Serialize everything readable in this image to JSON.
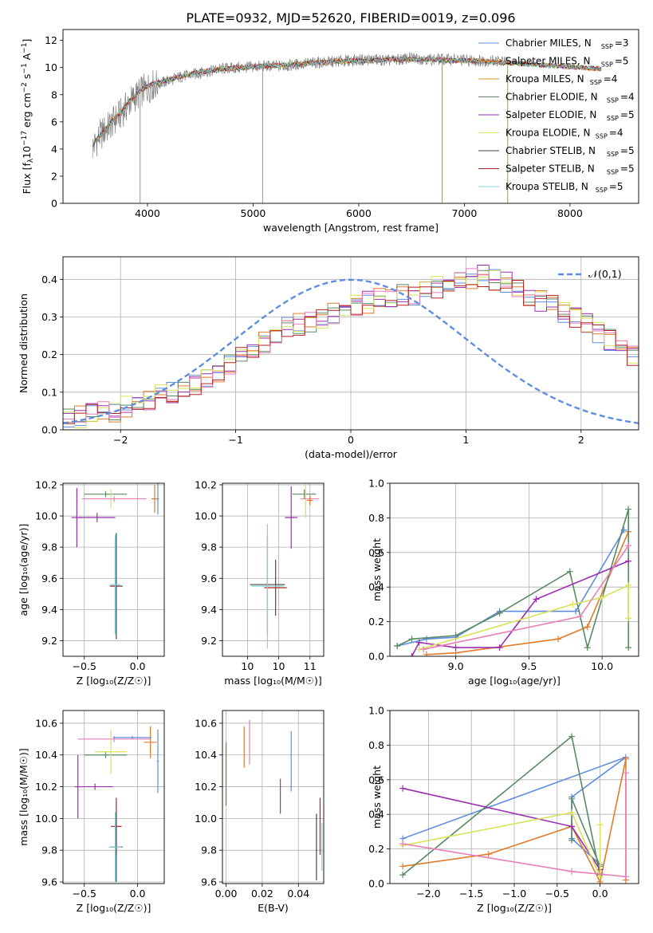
{
  "figure": {
    "title": "PLATE=0932, MJD=52620, FIBERID=0019, z=0.096"
  },
  "series_colors": {
    "Chabrier MILES": "#5f8ee0",
    "Salpeter MILES": "#e07b2c",
    "Kroupa MILES": "#d6941c",
    "Chabrier ELODIE": "#5a8a62",
    "Salpeter ELODIE": "#9b2fae",
    "Kroupa ELODIE": "#d9e35a",
    "Chabrier STELIB": "#444444",
    "Salpeter STELIB": "#b22222",
    "Kroupa STELIB": "#7fd6dc",
    "Kroupa MILES (alt)": "#e87fb8",
    "data": "#808080",
    "normal": "#5f8ee0"
  },
  "chart_data": [
    {
      "id": "spectrum",
      "type": "line",
      "xlabel": "wavelength [Angstrom, rest frame]",
      "ylabel_parts": [
        "Flux [f",
        "λ",
        "10",
        "−17",
        " erg cm",
        "−2",
        " s",
        "−1",
        " A",
        "−1",
        "]"
      ],
      "xlim": [
        3200,
        8650
      ],
      "ylim": [
        0,
        12.8
      ],
      "xticks": [
        4000,
        5000,
        6000,
        7000,
        8000
      ],
      "yticks": [
        0,
        2,
        4,
        6,
        8,
        10,
        12
      ],
      "legend_position": "right",
      "legend": [
        {
          "name": "Chabrier MILES",
          "nssp": "3",
          "color": "#5f8ee0"
        },
        {
          "name": "Salpeter MILES",
          "nssp": "5",
          "color": "#e07b2c"
        },
        {
          "name": "Kroupa MILES",
          "nssp": "4",
          "color": "#d6941c"
        },
        {
          "name": "Chabrier ELODIE",
          "nssp": "4",
          "color": "#5a8a62"
        },
        {
          "name": "Salpeter ELODIE",
          "nssp": "5",
          "color": "#9b2fae"
        },
        {
          "name": "Kroupa ELODIE",
          "nssp": "4",
          "color": "#d9e35a"
        },
        {
          "name": "Chabrier STELIB",
          "nssp": "5",
          "color": "#444444"
        },
        {
          "name": "Salpeter STELIB",
          "nssp": "5",
          "color": "#b22222"
        },
        {
          "name": "Kroupa STELIB",
          "nssp": "5",
          "color": "#7fd6dc"
        }
      ],
      "data_wavelength": [
        3480,
        3550,
        3650,
        3750,
        3850,
        3950,
        4050,
        4150,
        4300,
        4500,
        4700,
        4900,
        5100,
        5300,
        5500,
        5700,
        5900,
        6100,
        6300,
        6500,
        6700,
        6900,
        7100,
        7300,
        7400
      ],
      "data_flux": [
        4.1,
        5.0,
        5.8,
        6.6,
        7.6,
        8.3,
        8.7,
        8.9,
        9.3,
        9.6,
        9.9,
        10.0,
        10.1,
        10.1,
        10.3,
        10.4,
        10.5,
        10.6,
        10.5,
        10.7,
        10.6,
        10.6,
        10.5,
        10.5,
        10.4
      ],
      "model_wavelength": [
        3480,
        3550,
        3650,
        3750,
        3850,
        3950,
        4050,
        4150,
        4300,
        4500,
        4700,
        4900,
        5100,
        5300,
        5500,
        5700,
        5900,
        6100,
        6300,
        6500,
        6700,
        6900,
        7100,
        7300,
        7500,
        7700,
        7900,
        8100,
        8300
      ],
      "model_flux": [
        4.3,
        5.0,
        5.9,
        6.8,
        7.7,
        8.4,
        8.8,
        9.0,
        9.3,
        9.7,
        9.9,
        10.0,
        10.1,
        10.2,
        10.3,
        10.4,
        10.5,
        10.5,
        10.6,
        10.6,
        10.6,
        10.5,
        10.5,
        10.4,
        10.3,
        10.2,
        10.1,
        10.0,
        9.9
      ]
    },
    {
      "id": "residuals",
      "type": "line",
      "xlabel": "(data-model)/error",
      "ylabel": "Normed distribution",
      "xlim": [
        -2.5,
        2.5
      ],
      "ylim": [
        0,
        0.46
      ],
      "xticks": [
        -2,
        -1,
        0,
        1,
        2
      ],
      "yticks": [
        0.0,
        0.1,
        0.2,
        0.3,
        0.4
      ],
      "grid": true,
      "legend_position": "top-right",
      "legend": [
        {
          "name": "𝒩(0,1)",
          "color": "#5f8ee0",
          "style": "dashed"
        }
      ],
      "bin_edges_start": -2.5,
      "bin_width": 0.1,
      "histogram_envelope": [
        0.03,
        0.035,
        0.04,
        0.045,
        0.05,
        0.06,
        0.07,
        0.08,
        0.09,
        0.1,
        0.11,
        0.12,
        0.14,
        0.15,
        0.17,
        0.19,
        0.21,
        0.23,
        0.25,
        0.27,
        0.28,
        0.29,
        0.3,
        0.31,
        0.32,
        0.33,
        0.34,
        0.35,
        0.35,
        0.36,
        0.36,
        0.37,
        0.38,
        0.38,
        0.39,
        0.4,
        0.41,
        0.4,
        0.39,
        0.37,
        0.36,
        0.34,
        0.33,
        0.31,
        0.3,
        0.28,
        0.26,
        0.24,
        0.22,
        0.2
      ]
    },
    {
      "id": "age-vs-Z",
      "type": "scatter",
      "xlabel": "Z [log₁₀(Z/Z☉)]",
      "ylabel": "age  [log₁₀(age/yr)]",
      "xlim": [
        -0.7,
        0.25
      ],
      "ylim": [
        9.1,
        10.21
      ],
      "xticks": [
        -0.5,
        0.0
      ],
      "yticks": [
        9.2,
        9.4,
        9.6,
        9.8,
        10.0,
        10.2
      ],
      "points": [
        {
          "x": -0.2,
          "y": 9.55,
          "xerr": 0.06,
          "yerr": 0.34,
          "color": "#444444"
        },
        {
          "x": -0.21,
          "y": 9.55,
          "xerr": 0.04,
          "yerr": 0.3,
          "color": "#b22222"
        },
        {
          "x": -0.21,
          "y": 9.56,
          "xerr": 0.05,
          "yerr": 0.32,
          "color": "#7fd6dc"
        },
        {
          "x": -0.38,
          "y": 9.99,
          "xerr": 0.17,
          "yerr": 0.03,
          "color": "#9b2fae"
        },
        {
          "x": -0.57,
          "y": 9.99,
          "xerr": 0.05,
          "yerr": 0.19,
          "color": "#9b2fae"
        },
        {
          "x": -0.3,
          "y": 10.14,
          "xerr": 0.2,
          "yerr": 0.02,
          "color": "#5a8a62"
        },
        {
          "x": -0.25,
          "y": 10.11,
          "xerr": 0.05,
          "yerr": 0.06,
          "color": "#d9e35a"
        },
        {
          "x": -0.22,
          "y": 10.11,
          "xerr": 0.3,
          "yerr": 0.02,
          "color": "#e87fb8"
        },
        {
          "x": 0.16,
          "y": 10.11,
          "xerr": 0.03,
          "yerr": 0.09,
          "color": "#e07b2c"
        },
        {
          "x": 0.19,
          "y": 10.11,
          "xerr": 0.01,
          "yerr": 0.1,
          "color": "#5f8ee0"
        }
      ]
    },
    {
      "id": "age-vs-mass",
      "type": "scatter",
      "xlabel": "mass [log₁₀(M/M☉)]",
      "ylabel": "",
      "xlim": [
        9.1,
        10.72
      ],
      "ylim": [
        9.1,
        10.21
      ],
      "xticks": [
        9.5,
        10.0,
        10.5
      ],
      "yticks": [
        9.2,
        9.4,
        9.6,
        9.8,
        10.0,
        10.2
      ],
      "points": [
        {
          "x": 9.82,
          "y": 9.56,
          "xerr": 0.28,
          "yerr": 0.32,
          "color": "#444444"
        },
        {
          "x": 9.95,
          "y": 9.54,
          "xerr": 0.18,
          "yerr": 0.18,
          "color": "#b22222"
        },
        {
          "x": 9.82,
          "y": 9.55,
          "xerr": 0.26,
          "yerr": 0.4,
          "color": "#7fd6dc"
        },
        {
          "x": 10.2,
          "y": 9.99,
          "xerr": 0.1,
          "yerr": 0.2,
          "color": "#9b2fae"
        },
        {
          "x": 10.41,
          "y": 10.14,
          "xerr": 0.19,
          "yerr": 0.03,
          "color": "#5a8a62"
        },
        {
          "x": 10.43,
          "y": 10.11,
          "xerr": 0.05,
          "yerr": 0.12,
          "color": "#d9e35a"
        },
        {
          "x": 10.5,
          "y": 10.11,
          "xerr": 0.15,
          "yerr": 0.02,
          "color": "#e87fb8"
        },
        {
          "x": 10.5,
          "y": 10.1,
          "xerr": 0.05,
          "yerr": 0.03,
          "color": "#e07b2c"
        }
      ]
    },
    {
      "id": "massweight-vs-age",
      "type": "line",
      "xlabel": "age  [log₁₀(age/yr)]",
      "ylabel": "mass weight",
      "xlim": [
        8.55,
        10.25
      ],
      "ylim": [
        0,
        1.0
      ],
      "xticks": [
        9.0,
        9.5,
        10.0
      ],
      "yticks": [
        0.0,
        0.2,
        0.4,
        0.6,
        0.8,
        1.0
      ],
      "grid": true,
      "series": [
        {
          "name": "Chabrier MILES",
          "color": "#5f8ee0",
          "x": [
            8.6,
            8.8,
            9.0,
            9.3,
            9.82,
            10.15
          ],
          "y": [
            0.06,
            0.1,
            0.11,
            0.26,
            0.26,
            0.73
          ]
        },
        {
          "name": "Salpeter MILES",
          "color": "#e07b2c",
          "x": [
            8.8,
            9.0,
            9.7,
            9.9,
            10.18
          ],
          "y": [
            0.01,
            0.02,
            0.1,
            0.17,
            0.72
          ]
        },
        {
          "name": "Chabrier ELODIE",
          "color": "#5a8a62",
          "x": [
            8.6,
            8.7,
            9.0,
            9.3,
            9.78,
            9.9,
            10.18,
            10.18
          ],
          "y": [
            0.06,
            0.1,
            0.12,
            0.25,
            0.49,
            0.05,
            0.85,
            0.05
          ]
        },
        {
          "name": "Salpeter ELODIE",
          "color": "#9b2fae",
          "x": [
            8.7,
            8.75,
            9.0,
            9.3,
            9.55,
            10.18
          ],
          "y": [
            0.0,
            0.08,
            0.05,
            0.05,
            0.33,
            0.55
          ]
        },
        {
          "name": "Kroupa ELODIE",
          "color": "#d9e35a",
          "x": [
            8.75,
            9.8,
            10.0,
            10.18,
            10.18
          ],
          "y": [
            0.04,
            0.3,
            0.34,
            0.41,
            0.22
          ]
        },
        {
          "name": "Kroupa MILES (alt)",
          "color": "#e87fb8",
          "x": [
            8.78,
            9.85,
            10.18
          ],
          "y": [
            0.04,
            0.23,
            0.64
          ]
        }
      ]
    },
    {
      "id": "mass-vs-Z",
      "type": "scatter",
      "xlabel": "Z [log₁₀(Z/Z☉)]",
      "ylabel": "mass [log₁₀(M/M☉)]",
      "xlim": [
        -0.7,
        0.25
      ],
      "ylim": [
        9.59,
        10.68
      ],
      "xticks": [
        -0.5,
        0.0
      ],
      "yticks": [
        9.6,
        9.8,
        10.0,
        10.2,
        10.4,
        10.6
      ],
      "points": [
        {
          "x": -0.2,
          "y": 9.82,
          "xerr": 0.06,
          "yerr": 0.22,
          "color": "#444444"
        },
        {
          "x": -0.2,
          "y": 9.95,
          "xerr": 0.05,
          "yerr": 0.18,
          "color": "#b22222"
        },
        {
          "x": -0.21,
          "y": 9.82,
          "xerr": 0.06,
          "yerr": 0.22,
          "color": "#7fd6dc"
        },
        {
          "x": -0.4,
          "y": 10.2,
          "xerr": 0.17,
          "yerr": 0.02,
          "color": "#9b2fae"
        },
        {
          "x": -0.56,
          "y": 10.2,
          "xerr": 0.03,
          "yerr": 0.2,
          "color": "#9b2fae"
        },
        {
          "x": -0.3,
          "y": 10.4,
          "xerr": 0.2,
          "yerr": 0.02,
          "color": "#5a8a62"
        },
        {
          "x": -0.25,
          "y": 10.42,
          "xerr": 0.15,
          "yerr": 0.14,
          "color": "#d9e35a"
        },
        {
          "x": -0.22,
          "y": 10.5,
          "xerr": 0.34,
          "yerr": 0.02,
          "color": "#e87fb8"
        },
        {
          "x": 0.12,
          "y": 10.48,
          "xerr": 0.06,
          "yerr": 0.1,
          "color": "#e07b2c"
        },
        {
          "x": 0.19,
          "y": 10.36,
          "xerr": 0.01,
          "yerr": 0.2,
          "color": "#5f8ee0"
        },
        {
          "x": -0.05,
          "y": 10.51,
          "xerr": 0.18,
          "yerr": 0.01,
          "color": "#5f8ee0"
        }
      ]
    },
    {
      "id": "mass-vs-ebv",
      "type": "scatter",
      "xlabel": "E(B-V)",
      "ylabel": "",
      "xlim": [
        -0.002,
        0.054
      ],
      "ylim": [
        9.59,
        10.68
      ],
      "xticks": [
        0.0,
        0.02,
        0.04
      ],
      "yticks": [
        9.6,
        9.8,
        10.0,
        10.2,
        10.4,
        10.6
      ],
      "points": [
        {
          "x": 0.0,
          "y": 10.25,
          "yerr": 0.2,
          "color": "#d9e35a"
        },
        {
          "x": 0.0,
          "y": 10.28,
          "yerr": 0.2,
          "color": "#5a8a62"
        },
        {
          "x": 0.01,
          "y": 10.45,
          "yerr": 0.13,
          "color": "#e07b2c"
        },
        {
          "x": 0.013,
          "y": 10.48,
          "yerr": 0.14,
          "color": "#e87fb8"
        },
        {
          "x": 0.03,
          "y": 10.14,
          "yerr": 0.11,
          "color": "#9b2fae"
        },
        {
          "x": 0.036,
          "y": 10.36,
          "yerr": 0.19,
          "color": "#5f8ee0"
        },
        {
          "x": 0.05,
          "y": 9.82,
          "yerr": 0.21,
          "color": "#444444"
        },
        {
          "x": 0.052,
          "y": 9.95,
          "yerr": 0.18,
          "color": "#b22222"
        },
        {
          "x": 0.053,
          "y": 9.82,
          "yerr": 0.15,
          "color": "#7fd6dc"
        }
      ]
    },
    {
      "id": "massweight-vs-Z",
      "type": "line",
      "xlabel": "Z [log₁₀(Z/Z☉)]",
      "ylabel": "mass weight",
      "xlim": [
        -2.45,
        0.45
      ],
      "ylim": [
        0,
        1.0
      ],
      "xticks": [
        -2.0,
        -1.5,
        -1.0,
        -0.5,
        0.0
      ],
      "yticks": [
        0.0,
        0.2,
        0.4,
        0.6,
        0.8,
        1.0
      ],
      "grid": true,
      "series": [
        {
          "name": "Chabrier MILES",
          "color": "#5f8ee0",
          "x": [
            -2.3,
            0.3,
            -0.33,
            -0.33,
            0.0,
            0.0
          ],
          "y": [
            0.26,
            0.73,
            0.5,
            0.26,
            0.11,
            0.06
          ]
        },
        {
          "name": "Salpeter MILES",
          "color": "#e07b2c",
          "x": [
            -2.3,
            -1.3,
            -0.33,
            0.0,
            0.3,
            0.3
          ],
          "y": [
            0.1,
            0.17,
            0.33,
            0.01,
            0.72,
            0.02
          ]
        },
        {
          "name": "Chabrier ELODIE",
          "color": "#5a8a62",
          "x": [
            -2.3,
            -0.33,
            0.0,
            0.0,
            -0.33,
            -0.33
          ],
          "y": [
            0.05,
            0.85,
            0.05,
            0.1,
            0.49,
            0.25
          ]
        },
        {
          "name": "Salpeter ELODIE",
          "color": "#9b2fae",
          "x": [
            -2.3,
            -0.33,
            0.0
          ],
          "y": [
            0.55,
            0.33,
            0.08
          ]
        },
        {
          "name": "Kroupa ELODIE",
          "color": "#d9e35a",
          "x": [
            -2.3,
            -0.33,
            0.0,
            0.0
          ],
          "y": [
            0.22,
            0.41,
            0.04,
            0.34
          ]
        },
        {
          "name": "Kroupa MILES (alt)",
          "color": "#e87fb8",
          "x": [
            -2.3,
            -0.33,
            0.3,
            0.3
          ],
          "y": [
            0.23,
            0.07,
            0.04,
            0.64
          ]
        }
      ]
    }
  ]
}
